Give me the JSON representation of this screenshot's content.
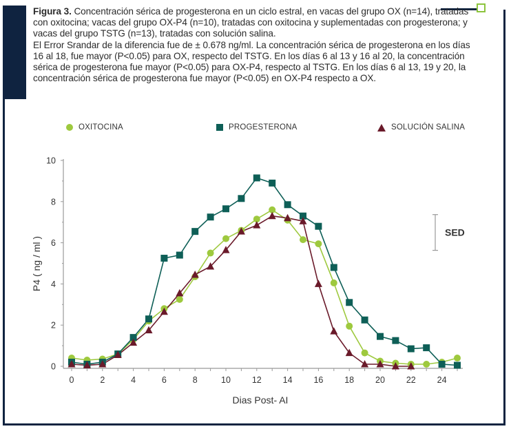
{
  "caption": {
    "figure_label": "Figura 3.",
    "paragraph1": " Concentración sérica de progesterona en un ciclo estral, en vacas del grupo OX (n=14), tratadas con oxitocina; vacas del grupo OX-P4 (n=10), tratadas con oxitocina y suplementadas con progesterona; y vacas del grupo TSTG (n=13), tratadas con solución salina.",
    "paragraph2": "El Error Srandar de la diferencia fue de ± 0.678 ng/ml. La concentración sérica de progesterona en los días 16 al 18, fue mayor (P<0.05) para OX, respecto del TSTG. En los días 6 al 13  y 16 al 20, la concentración sérica de progesterona fue mayor (P<0.05) para OX-P4, respecto al TSTG. En los días 6 al 13, 19 y 20, la concentración sérica de progesterona fue mayor (P<0.05) en OX-P4  respecto a OX."
  },
  "colors": {
    "oxitocina": "#9ec93e",
    "progesterona": "#0e5f57",
    "solucion_salina": "#6a1a2a",
    "axis": "#999999",
    "frame": "#0f2340",
    "accent": "#8cc43c"
  },
  "chart_data": {
    "type": "line",
    "xlabel": "Dias Post- AI",
    "ylabel": "P4 ( ng / ml )",
    "xlim": [
      0,
      25
    ],
    "ylim": [
      0,
      10
    ],
    "x_ticks": [
      0,
      2,
      4,
      6,
      8,
      10,
      12,
      14,
      16,
      18,
      20,
      22,
      24
    ],
    "y_ticks": [
      0,
      2,
      4,
      6,
      8,
      10
    ],
    "legend_position": "top",
    "sed_label": "SED",
    "sed_range": [
      6.0,
      7.0
    ],
    "series": [
      {
        "name": "OXITOCINA",
        "marker": "circle",
        "color": "#9ec93e",
        "x": [
          0,
          1,
          2,
          3,
          4,
          5,
          6,
          7,
          8,
          9,
          10,
          11,
          12,
          13,
          14,
          15,
          16,
          17,
          18,
          19,
          20,
          21,
          22,
          23,
          24,
          25
        ],
        "values": [
          0.4,
          0.3,
          0.35,
          0.6,
          1.3,
          2.2,
          2.8,
          3.25,
          4.35,
          5.5,
          6.2,
          6.6,
          7.15,
          7.6,
          7.1,
          6.15,
          5.95,
          4.05,
          1.95,
          0.65,
          0.25,
          0.15,
          0.1,
          0.1,
          0.2,
          0.4
        ]
      },
      {
        "name": "PROGESTERONA",
        "marker": "square",
        "color": "#0e5f57",
        "x": [
          0,
          1,
          2,
          3,
          4,
          5,
          6,
          7,
          8,
          9,
          10,
          11,
          12,
          13,
          14,
          15,
          16,
          17,
          18,
          19,
          20,
          21,
          22,
          23,
          24,
          25
        ],
        "values": [
          0.2,
          0.1,
          0.2,
          0.6,
          1.4,
          2.3,
          5.25,
          5.4,
          6.55,
          7.25,
          7.65,
          8.15,
          9.15,
          8.9,
          7.85,
          7.3,
          6.8,
          4.8,
          3.1,
          2.25,
          1.45,
          1.25,
          0.85,
          0.9,
          0.1,
          0.05
        ]
      },
      {
        "name": "SOLUCIÓN SALINA",
        "marker": "triangle",
        "color": "#6a1a2a",
        "x": [
          0,
          1,
          2,
          3,
          4,
          5,
          6,
          7,
          8,
          9,
          10,
          11,
          12,
          13,
          14,
          15,
          16,
          17,
          18,
          19,
          20,
          21,
          22
        ],
        "values": [
          0.1,
          0.05,
          0.1,
          0.55,
          1.15,
          1.75,
          2.65,
          3.55,
          4.45,
          4.85,
          5.65,
          6.55,
          6.85,
          7.3,
          7.2,
          7.05,
          4.0,
          1.7,
          0.65,
          0.1,
          0.1,
          0.0,
          0.0
        ]
      }
    ]
  }
}
